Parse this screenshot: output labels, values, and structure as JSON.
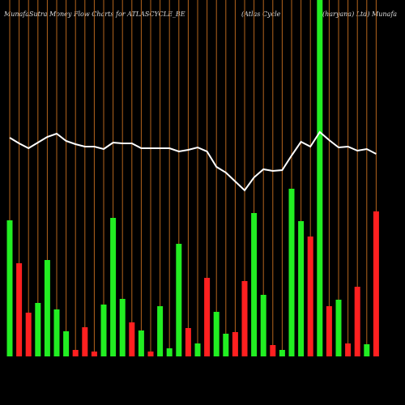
{
  "chart_data": {
    "type": "bar",
    "title": "MunafaSutra  Money Flow  Charts for ATLASCYCLE_BE",
    "subtitle": "(Atlas Cycle",
    "subtitle2": "(haryana) Ltd) Munafa",
    "ylim": [
      0,
      440
    ],
    "values": [
      168,
      115,
      54,
      66,
      119,
      58,
      31,
      8,
      36,
      6,
      64,
      171,
      71,
      42,
      32,
      6,
      62,
      10,
      139,
      35,
      16,
      97,
      55,
      28,
      30,
      93,
      177,
      76,
      14,
      8,
      207,
      167,
      148,
      440,
      62,
      70,
      16,
      86,
      15,
      179
    ],
    "colors": [
      "#22ee22",
      "#ff2020",
      "#ff2020",
      "#22ee22",
      "#22ee22",
      "#22ee22",
      "#22ee22",
      "#ff2020",
      "#ff2020",
      "#ff2020",
      "#22ee22",
      "#22ee22",
      "#22ee22",
      "#ff2020",
      "#22ee22",
      "#ff2020",
      "#22ee22",
      "#22ee22",
      "#22ee22",
      "#ff2020",
      "#22ee22",
      "#ff2020",
      "#22ee22",
      "#22ee22",
      "#ff2020",
      "#ff2020",
      "#22ee22",
      "#22ee22",
      "#ff2020",
      "#22ee22",
      "#22ee22",
      "#22ee22",
      "#ff2020",
      "#22ee22",
      "#ff2020",
      "#22ee22",
      "#ff2020",
      "#ff2020",
      "#22ee22",
      "#ff2020"
    ],
    "line": [
      270,
      263,
      257,
      264,
      271,
      275,
      266,
      262,
      259,
      259,
      256,
      264,
      263,
      263,
      257,
      257,
      257,
      257,
      253,
      255,
      258,
      253,
      234,
      227,
      216,
      205,
      221,
      231,
      229,
      230,
      248,
      265,
      259,
      277,
      267,
      258,
      259,
      254,
      256,
      250
    ],
    "line_color": "#ffffff",
    "gridline_color": "#b5651d"
  }
}
